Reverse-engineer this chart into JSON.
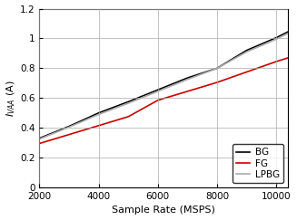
{
  "title": "",
  "xlabel": "Sample Rate (MSPS)",
  "ylabel": "I_VAA (A)",
  "xlim": [
    2000,
    10400
  ],
  "ylim": [
    0,
    1.2
  ],
  "xticks": [
    2000,
    4000,
    6000,
    8000,
    10000
  ],
  "yticks": [
    0,
    0.2,
    0.4,
    0.6,
    0.8,
    1.0,
    1.2
  ],
  "series": {
    "BG": {
      "x": [
        2000,
        3000,
        4000,
        5000,
        6000,
        7000,
        8000,
        9000,
        10000,
        10400
      ],
      "y": [
        0.33,
        0.41,
        0.5,
        0.575,
        0.655,
        0.735,
        0.8,
        0.92,
        1.005,
        1.045
      ],
      "color": "#000000",
      "linewidth": 1.2,
      "linestyle": "-"
    },
    "FG": {
      "x": [
        2000,
        3000,
        4000,
        5000,
        6000,
        7000,
        8000,
        9000,
        10000,
        10400
      ],
      "y": [
        0.295,
        0.355,
        0.415,
        0.475,
        0.585,
        0.645,
        0.705,
        0.775,
        0.845,
        0.87
      ],
      "color": "#cc0000",
      "linewidth": 1.2,
      "linestyle": "-"
    },
    "LPBG": {
      "x": [
        2000,
        3000,
        4000,
        5000,
        6000,
        7000,
        8000,
        9000,
        10000,
        10400
      ],
      "y": [
        0.325,
        0.405,
        0.49,
        0.565,
        0.645,
        0.725,
        0.8,
        0.91,
        0.995,
        1.035
      ],
      "color": "#aaaaaa",
      "linewidth": 1.2,
      "linestyle": "-"
    }
  },
  "legend_loc": "lower right",
  "grid_color": "#aaaaaa",
  "background_color": "#ffffff",
  "ylabel_fontsize": 8,
  "xlabel_fontsize": 8,
  "tick_fontsize": 7.5
}
